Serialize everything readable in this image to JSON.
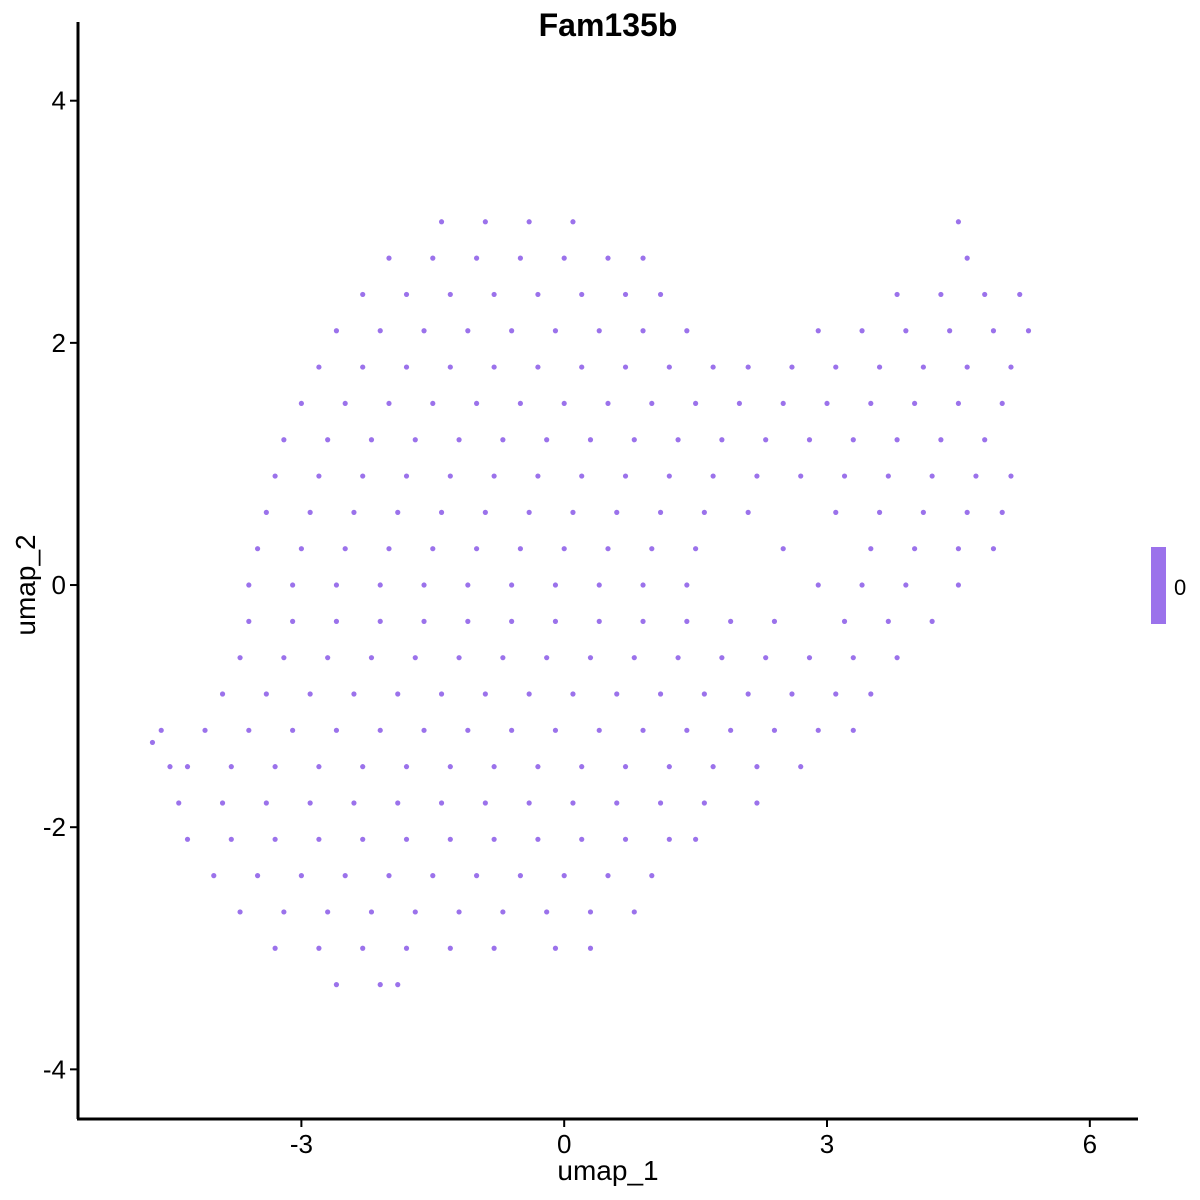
{
  "chart_data": {
    "type": "scatter",
    "title": "Fam135b",
    "xlabel": "umap_1",
    "ylabel": "umap_2",
    "xlim": [
      -5.55,
      6.55
    ],
    "ylim": [
      -4.41,
      4.65
    ],
    "xticks": [
      -3,
      0,
      3,
      6
    ],
    "yticks": [
      -4,
      -2,
      0,
      2,
      4
    ],
    "grid": false,
    "point_color": "#9b72eb",
    "legend": {
      "type": "colorbar",
      "placement": "right",
      "labels": [
        "0"
      ],
      "color": "#9b72eb"
    },
    "points_by_y": [
      {
        "y": 3.0,
        "x": [
          -1.4,
          -0.9,
          -0.4,
          0.1,
          4.5
        ]
      },
      {
        "y": 2.7,
        "x": [
          -2.0,
          -1.5,
          -1.0,
          -0.5,
          0.0,
          0.5,
          0.9,
          4.6
        ]
      },
      {
        "y": 2.4,
        "x": [
          -2.3,
          -1.8,
          -1.3,
          -0.8,
          -0.3,
          0.2,
          0.7,
          1.1,
          3.8,
          4.3,
          4.8,
          5.2
        ]
      },
      {
        "y": 2.1,
        "x": [
          -2.6,
          -2.1,
          -1.6,
          -1.1,
          -0.6,
          -0.1,
          0.4,
          0.9,
          1.4,
          2.9,
          3.4,
          3.9,
          4.4,
          4.9,
          5.3
        ]
      },
      {
        "y": 1.8,
        "x": [
          -2.8,
          -2.3,
          -1.8,
          -1.3,
          -0.8,
          -0.3,
          0.2,
          0.7,
          1.2,
          1.7,
          2.1,
          2.6,
          3.1,
          3.6,
          4.1,
          4.6,
          5.1
        ]
      },
      {
        "y": 1.5,
        "x": [
          -3.0,
          -2.5,
          -2.0,
          -1.5,
          -1.0,
          -0.5,
          0.0,
          0.5,
          1.0,
          1.5,
          2.0,
          2.5,
          3.0,
          3.5,
          4.0,
          4.5,
          5.0
        ]
      },
      {
        "y": 1.2,
        "x": [
          -3.2,
          -2.7,
          -2.2,
          -1.7,
          -1.2,
          -0.7,
          -0.2,
          0.3,
          0.8,
          1.3,
          1.8,
          2.3,
          2.8,
          3.3,
          3.8,
          4.3,
          4.8
        ]
      },
      {
        "y": 0.9,
        "x": [
          -3.3,
          -2.8,
          -2.3,
          -1.8,
          -1.3,
          -0.8,
          -0.3,
          0.2,
          0.7,
          1.2,
          1.7,
          2.2,
          2.7,
          3.2,
          3.7,
          4.2,
          4.7,
          5.1
        ]
      },
      {
        "y": 0.6,
        "x": [
          -3.4,
          -2.9,
          -2.4,
          -1.9,
          -1.4,
          -0.9,
          -0.4,
          0.1,
          0.6,
          1.1,
          1.6,
          2.1,
          3.1,
          3.6,
          4.1,
          4.6,
          5.0
        ]
      },
      {
        "y": 0.3,
        "x": [
          -3.5,
          -3.0,
          -2.5,
          -2.0,
          -1.5,
          -1.0,
          -0.5,
          0.0,
          0.5,
          1.0,
          1.5,
          2.5,
          3.5,
          4.0,
          4.5,
          4.9
        ]
      },
      {
        "y": 0.0,
        "x": [
          -3.6,
          -3.1,
          -2.6,
          -2.1,
          -1.6,
          -1.1,
          -0.6,
          -0.1,
          0.4,
          0.9,
          1.4,
          2.9,
          3.4,
          3.9,
          4.5
        ]
      },
      {
        "y": -0.3,
        "x": [
          -3.6,
          -3.1,
          -2.6,
          -2.1,
          -1.6,
          -1.1,
          -0.6,
          -0.1,
          0.4,
          0.9,
          1.4,
          1.9,
          2.4,
          3.2,
          3.7,
          4.2
        ]
      },
      {
        "y": -0.6,
        "x": [
          -3.7,
          -3.2,
          -2.7,
          -2.2,
          -1.7,
          -1.2,
          -0.7,
          -0.2,
          0.3,
          0.8,
          1.3,
          1.8,
          2.3,
          2.8,
          3.3,
          3.8
        ]
      },
      {
        "y": -0.9,
        "x": [
          -3.9,
          -3.4,
          -2.9,
          -2.4,
          -1.9,
          -1.4,
          -0.9,
          -0.4,
          0.1,
          0.6,
          1.1,
          1.6,
          2.1,
          2.6,
          3.1,
          3.5
        ]
      },
      {
        "y": -1.2,
        "x": [
          -4.1,
          -3.6,
          -3.1,
          -2.6,
          -2.1,
          -1.6,
          -1.1,
          -0.6,
          -0.1,
          0.4,
          0.9,
          1.4,
          1.9,
          2.4,
          2.9,
          3.3
        ]
      },
      {
        "y": -1.5,
        "x": [
          -4.3,
          -3.8,
          -3.3,
          -2.8,
          -2.3,
          -1.8,
          -1.3,
          -0.8,
          -0.3,
          0.2,
          0.7,
          1.2,
          1.7,
          2.2,
          2.7
        ]
      },
      {
        "y": -1.8,
        "x": [
          -4.4,
          -3.9,
          -3.4,
          -2.9,
          -2.4,
          -1.9,
          -1.4,
          -0.9,
          -0.4,
          0.1,
          0.6,
          1.1,
          1.6,
          2.2
        ]
      },
      {
        "y": -2.1,
        "x": [
          -4.3,
          -3.8,
          -3.3,
          -2.8,
          -2.3,
          -1.8,
          -1.3,
          -0.8,
          -0.3,
          0.2,
          0.7,
          1.2,
          1.5
        ]
      },
      {
        "y": -2.4,
        "x": [
          -4.0,
          -3.5,
          -3.0,
          -2.5,
          -2.0,
          -1.5,
          -1.0,
          -0.5,
          0.0,
          0.5,
          1.0
        ]
      },
      {
        "y": -2.7,
        "x": [
          -3.7,
          -3.2,
          -2.7,
          -2.2,
          -1.7,
          -1.2,
          -0.7,
          -0.2,
          0.3,
          0.8
        ]
      },
      {
        "y": -3.0,
        "x": [
          -3.3,
          -2.8,
          -2.3,
          -1.8,
          -1.3,
          -0.8,
          -0.1,
          0.3
        ]
      },
      {
        "y": -3.3,
        "x": [
          -2.6,
          -2.1,
          -1.9
        ]
      },
      {
        "y": -1.3,
        "x": [
          -4.7
        ]
      },
      {
        "y": -1.2,
        "x": [
          -4.6
        ]
      },
      {
        "y": -1.5,
        "x": [
          -4.5
        ]
      }
    ]
  }
}
